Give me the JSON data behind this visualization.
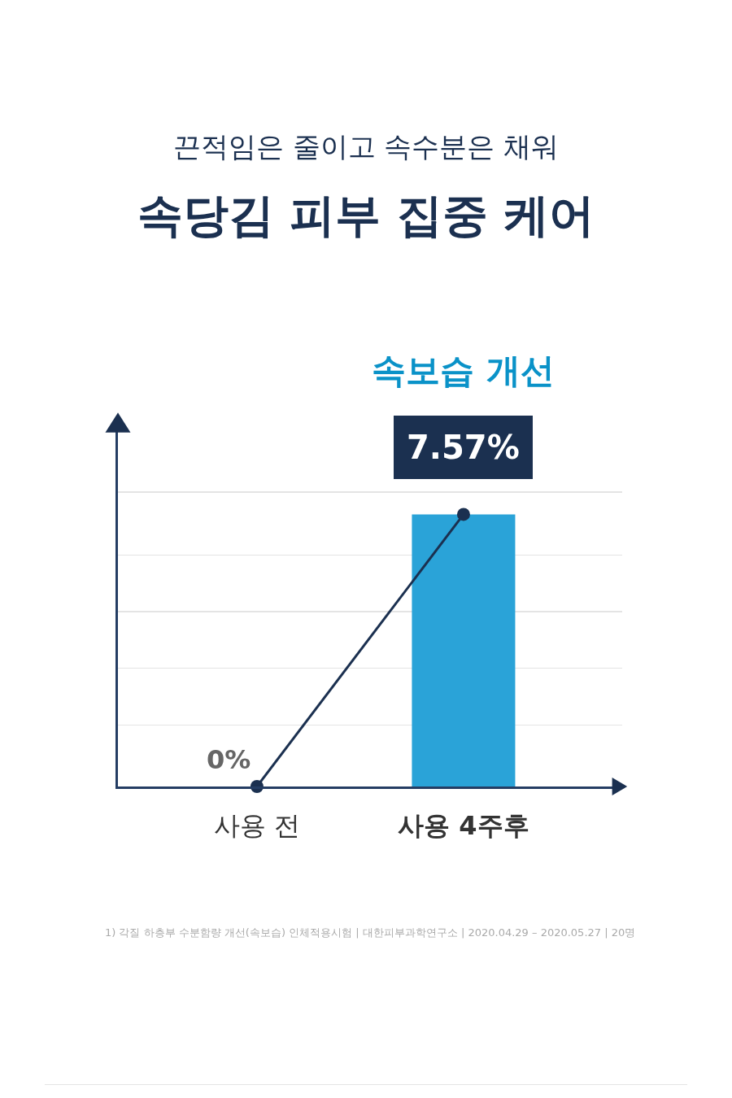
{
  "chart_data": {
    "type": "bar",
    "subtitle": "끈적임은 줄이고 속수분은 채워",
    "title": "속당김 피부 집중 케어",
    "categories": [
      "사용 전",
      "사용 4주후"
    ],
    "series": [
      {
        "color": "#2aa3d8",
        "values": [
          null,
          7.57
        ]
      },
      {
        "type": "line",
        "color": "#1b3050",
        "values": [
          0,
          7.57
        ],
        "value_labels": [
          "0%",
          "7.57%"
        ]
      }
    ],
    "ylim": [
      0,
      10
    ],
    "yticks": [
      {
        "value": 1.71,
        "label": null
      },
      {
        "value": 3.29,
        "label": null
      },
      {
        "value": 4.86,
        "label": null
      },
      {
        "value": 6.44,
        "label": null
      },
      {
        "value": 8.19,
        "label": null
      }
    ],
    "grid": "y",
    "tick_labels": "x",
    "marker": "circle",
    "line_style": "solid",
    "annotations": [
      "속보습 개선",
      "1) 각질 하층부 수분함량 개선(속보습) 인체적용시험 | 대한피부과학연구소 | 2020.04.29 – 2020.05.27 | 20명"
    ]
  }
}
